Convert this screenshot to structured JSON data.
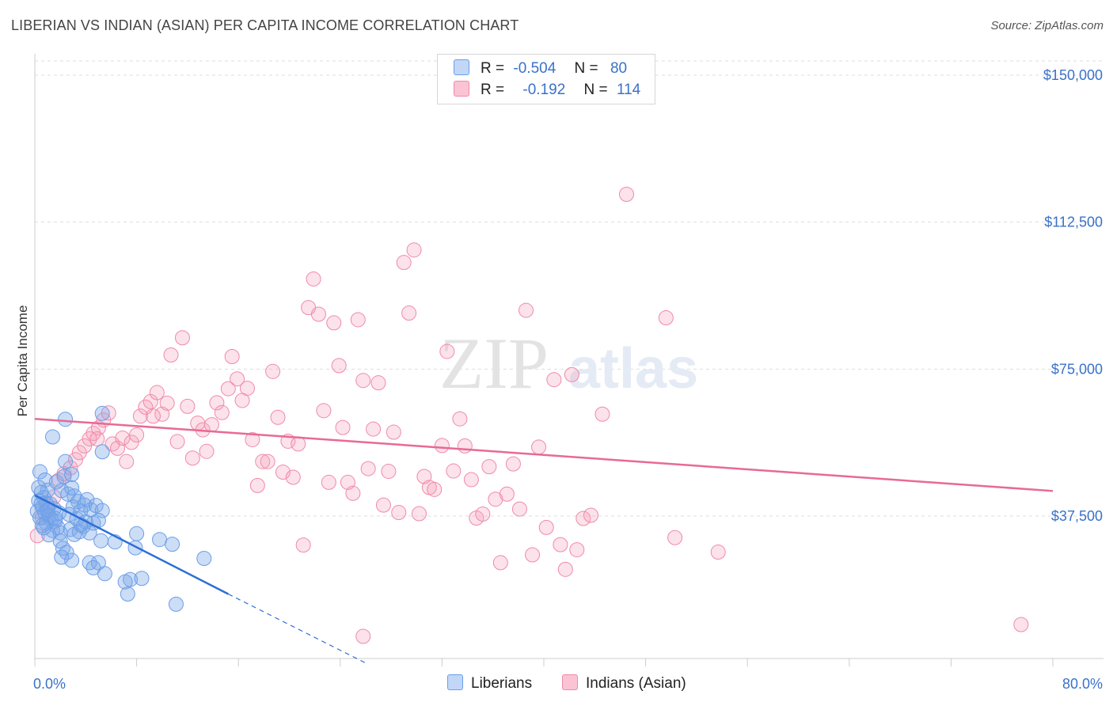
{
  "title": "LIBERIAN VS INDIAN (ASIAN) PER CAPITA INCOME CORRELATION CHART",
  "source": "Source: ZipAtlas.com",
  "watermark": {
    "zip": "ZIP",
    "atlas": "atlas"
  },
  "legend": [
    {
      "r_label": "R =",
      "r_value": "-0.504",
      "n_label": "N =",
      "n_value": "80",
      "color": "#6b9ee8"
    },
    {
      "r_label": "R =",
      "r_value": "-0.192",
      "n_label": "N =",
      "n_value": "114",
      "color": "#f08aaa"
    }
  ],
  "bottom_legend": [
    {
      "label": "Liberians",
      "color": "#6b9ee8"
    },
    {
      "label": "Indians (Asian)",
      "color": "#f08aaa"
    }
  ],
  "chart_data": {
    "type": "scatter",
    "title": "LIBERIAN VS INDIAN (ASIAN) PER CAPITA INCOME CORRELATION CHART",
    "xlabel": "",
    "ylabel": "Per Capita Income",
    "x_tick_labels": [
      "0.0%",
      "80.0%"
    ],
    "y_tick_labels": [
      "$37,500",
      "$75,000",
      "$112,500",
      "$150,000"
    ],
    "y_ticks": [
      37500,
      75000,
      112500,
      150000
    ],
    "xlim": [
      0,
      80
    ],
    "ylim": [
      0,
      155000
    ],
    "grid": "horizontal dashed",
    "series": [
      {
        "name": "Liberians",
        "color": "#6b9ee8",
        "points": [
          [
            0.4,
            48800
          ],
          [
            0.8,
            46700
          ],
          [
            1.0,
            44100
          ],
          [
            0.5,
            43500
          ],
          [
            0.7,
            42200
          ],
          [
            0.3,
            41400
          ],
          [
            0.9,
            40800
          ],
          [
            1.2,
            40600
          ],
          [
            0.6,
            39700
          ],
          [
            1.5,
            39400
          ],
          [
            0.2,
            38700
          ],
          [
            0.8,
            38300
          ],
          [
            1.1,
            37600
          ],
          [
            0.4,
            37100
          ],
          [
            1.3,
            36600
          ],
          [
            1.6,
            36200
          ],
          [
            0.9,
            35700
          ],
          [
            0.6,
            35100
          ],
          [
            1.8,
            34600
          ],
          [
            1.4,
            33800
          ],
          [
            2.0,
            33200
          ],
          [
            1.1,
            32700
          ],
          [
            1.7,
            46200
          ],
          [
            2.3,
            47600
          ],
          [
            2.1,
            44000
          ],
          [
            2.6,
            43100
          ],
          [
            2.9,
            48100
          ],
          [
            2.4,
            51400
          ],
          [
            3.1,
            42600
          ],
          [
            3.4,
            41200
          ],
          [
            3.0,
            39800
          ],
          [
            2.7,
            37900
          ],
          [
            3.6,
            38800
          ],
          [
            3.9,
            40300
          ],
          [
            4.1,
            41700
          ],
          [
            4.4,
            39100
          ],
          [
            4.8,
            40200
          ],
          [
            5.3,
            38900
          ],
          [
            3.3,
            36800
          ],
          [
            4.0,
            36000
          ],
          [
            4.6,
            35700
          ],
          [
            5.0,
            36400
          ],
          [
            3.8,
            34900
          ],
          [
            2.8,
            34100
          ],
          [
            3.5,
            33500
          ],
          [
            4.3,
            33200
          ],
          [
            3.1,
            32800
          ],
          [
            2.0,
            31100
          ],
          [
            2.2,
            29300
          ],
          [
            2.5,
            28200
          ],
          [
            2.1,
            27000
          ],
          [
            2.9,
            26200
          ],
          [
            4.3,
            25600
          ],
          [
            5.0,
            25600
          ],
          [
            4.6,
            24300
          ],
          [
            5.5,
            22800
          ],
          [
            5.2,
            31200
          ],
          [
            6.3,
            30900
          ],
          [
            7.9,
            29400
          ],
          [
            8.0,
            33000
          ],
          [
            9.8,
            31500
          ],
          [
            10.8,
            30300
          ],
          [
            13.3,
            26700
          ],
          [
            7.5,
            21300
          ],
          [
            7.1,
            20700
          ],
          [
            8.4,
            21600
          ],
          [
            7.3,
            17600
          ],
          [
            11.1,
            15000
          ],
          [
            5.3,
            63700
          ],
          [
            1.4,
            57700
          ],
          [
            2.4,
            62200
          ],
          [
            5.3,
            53900
          ],
          [
            0.5,
            40600
          ],
          [
            1.0,
            39000
          ],
          [
            1.9,
            38300
          ],
          [
            0.7,
            34500
          ],
          [
            1.6,
            36900
          ],
          [
            3.6,
            35300
          ],
          [
            0.3,
            44800
          ],
          [
            2.9,
            44700
          ]
        ],
        "trend": {
          "x0": 0,
          "y0": 42800,
          "x1": 15.2,
          "y1": 17600,
          "dash_to_x": 26.0,
          "dash_to_y": 0
        }
      },
      {
        "name": "Indians (Asian)",
        "color": "#f08aaa",
        "points": [
          [
            0.2,
            32500
          ],
          [
            0.6,
            37100
          ],
          [
            1.0,
            40300
          ],
          [
            1.5,
            42400
          ],
          [
            1.9,
            46700
          ],
          [
            2.3,
            48300
          ],
          [
            2.8,
            49800
          ],
          [
            3.2,
            51900
          ],
          [
            3.5,
            53700
          ],
          [
            3.9,
            55400
          ],
          [
            4.3,
            57200
          ],
          [
            4.6,
            58600
          ],
          [
            5.0,
            60000
          ],
          [
            5.4,
            62000
          ],
          [
            5.8,
            63800
          ],
          [
            6.1,
            55900
          ],
          [
            6.5,
            54800
          ],
          [
            6.9,
            57400
          ],
          [
            7.2,
            51400
          ],
          [
            7.6,
            56300
          ],
          [
            8.0,
            58200
          ],
          [
            8.3,
            63000
          ],
          [
            8.7,
            65300
          ],
          [
            9.1,
            66700
          ],
          [
            9.6,
            69000
          ],
          [
            10.0,
            63500
          ],
          [
            10.4,
            66300
          ],
          [
            10.7,
            78600
          ],
          [
            11.2,
            56500
          ],
          [
            11.6,
            83000
          ],
          [
            12.0,
            65500
          ],
          [
            12.4,
            52300
          ],
          [
            12.8,
            61200
          ],
          [
            13.2,
            59500
          ],
          [
            13.5,
            54000
          ],
          [
            13.9,
            60800
          ],
          [
            14.3,
            66400
          ],
          [
            14.7,
            63900
          ],
          [
            15.2,
            70000
          ],
          [
            15.5,
            78200
          ],
          [
            15.9,
            72500
          ],
          [
            16.3,
            67000
          ],
          [
            16.7,
            70100
          ],
          [
            17.1,
            57000
          ],
          [
            17.5,
            45300
          ],
          [
            17.9,
            51400
          ],
          [
            18.3,
            51400
          ],
          [
            18.7,
            74400
          ],
          [
            19.1,
            62700
          ],
          [
            19.5,
            48700
          ],
          [
            19.9,
            56600
          ],
          [
            20.3,
            47400
          ],
          [
            20.7,
            55900
          ],
          [
            21.1,
            30100
          ],
          [
            21.5,
            90700
          ],
          [
            21.9,
            98000
          ],
          [
            22.3,
            89000
          ],
          [
            22.7,
            64400
          ],
          [
            23.1,
            46100
          ],
          [
            23.5,
            86800
          ],
          [
            23.9,
            75900
          ],
          [
            24.2,
            60100
          ],
          [
            24.6,
            46100
          ],
          [
            25.0,
            43300
          ],
          [
            25.4,
            87600
          ],
          [
            25.8,
            72100
          ],
          [
            26.2,
            49600
          ],
          [
            26.6,
            59700
          ],
          [
            27.0,
            71500
          ],
          [
            27.4,
            40300
          ],
          [
            27.8,
            48900
          ],
          [
            28.2,
            58900
          ],
          [
            28.6,
            38400
          ],
          [
            29.0,
            102200
          ],
          [
            29.4,
            89300
          ],
          [
            29.8,
            105400
          ],
          [
            30.2,
            38100
          ],
          [
            30.6,
            47600
          ],
          [
            31.0,
            44800
          ],
          [
            31.4,
            44300
          ],
          [
            32.0,
            55500
          ],
          [
            32.4,
            79500
          ],
          [
            32.9,
            49000
          ],
          [
            33.4,
            62300
          ],
          [
            33.8,
            55400
          ],
          [
            34.3,
            46800
          ],
          [
            34.7,
            37000
          ],
          [
            35.2,
            38000
          ],
          [
            35.7,
            50100
          ],
          [
            36.2,
            41800
          ],
          [
            36.6,
            25600
          ],
          [
            37.1,
            43100
          ],
          [
            37.6,
            50800
          ],
          [
            38.1,
            39300
          ],
          [
            38.6,
            90000
          ],
          [
            39.1,
            27600
          ],
          [
            39.6,
            55100
          ],
          [
            40.2,
            34600
          ],
          [
            40.8,
            72300
          ],
          [
            41.3,
            30200
          ],
          [
            41.7,
            23900
          ],
          [
            42.2,
            73600
          ],
          [
            42.6,
            28900
          ],
          [
            43.1,
            36900
          ],
          [
            43.7,
            37700
          ],
          [
            44.6,
            63500
          ],
          [
            46.5,
            119600
          ],
          [
            49.6,
            88100
          ],
          [
            50.3,
            32000
          ],
          [
            53.7,
            28300
          ],
          [
            25.8,
            6800
          ],
          [
            77.5,
            9800
          ],
          [
            4.9,
            57200
          ],
          [
            9.3,
            63000
          ]
        ],
        "trend": {
          "x0": 0,
          "y0": 62300,
          "x1": 80,
          "y1": 43900
        }
      }
    ]
  }
}
